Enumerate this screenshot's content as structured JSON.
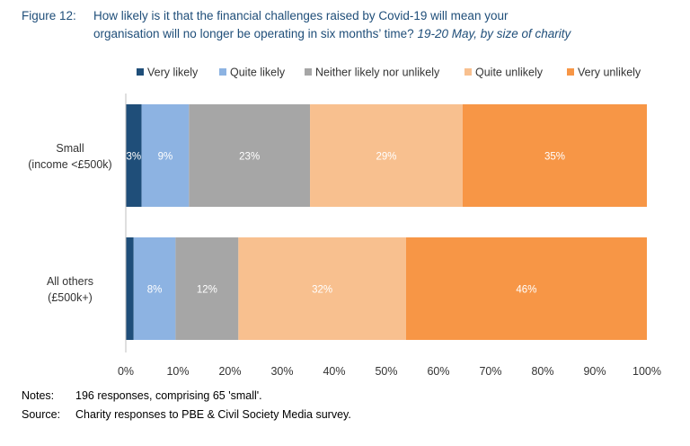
{
  "figure": {
    "label": "Figure 12:",
    "title_line1": "How likely is it that the financial challenges raised by Covid-19 will mean your",
    "title_line2": "organisation will no longer be operating in six months’ time?",
    "subtitle": "19-20 May, by size of charity"
  },
  "notes": {
    "notes_key": "Notes:",
    "notes_text": "196 responses, comprising 65 'small'.",
    "source_key": "Source:",
    "source_text": "Charity responses to PBE & Civil Society Media survey."
  },
  "chart_data": {
    "type": "bar",
    "orientation": "horizontal",
    "stacked": "100%",
    "categories": [
      [
        "Small",
        "(income <£500k)"
      ],
      [
        "All others",
        "(£500k+)"
      ]
    ],
    "series": [
      {
        "name": "Very likely",
        "color": "#1f4e79",
        "values": [
          3,
          1.5
        ],
        "labels": [
          "3%",
          ""
        ]
      },
      {
        "name": "Quite likely",
        "color": "#8db3e2",
        "values": [
          9,
          8
        ],
        "labels": [
          "9%",
          "8%"
        ]
      },
      {
        "name": "Neither likely nor unlikely",
        "color": "#a6a6a6",
        "values": [
          23,
          12
        ],
        "labels": [
          "23%",
          "12%"
        ]
      },
      {
        "name": "Quite unlikely",
        "color": "#f8c08f",
        "values": [
          29,
          32
        ],
        "labels": [
          "29%",
          "32%"
        ]
      },
      {
        "name": "Very unlikely",
        "color": "#f79646",
        "values": [
          35,
          46
        ],
        "labels": [
          "35%",
          "46%"
        ]
      }
    ],
    "xlim": [
      0,
      100
    ],
    "xticks": [
      "0%",
      "10%",
      "20%",
      "30%",
      "40%",
      "50%",
      "60%",
      "70%",
      "80%",
      "90%",
      "100%"
    ],
    "legend_position": "top",
    "grid": false
  }
}
